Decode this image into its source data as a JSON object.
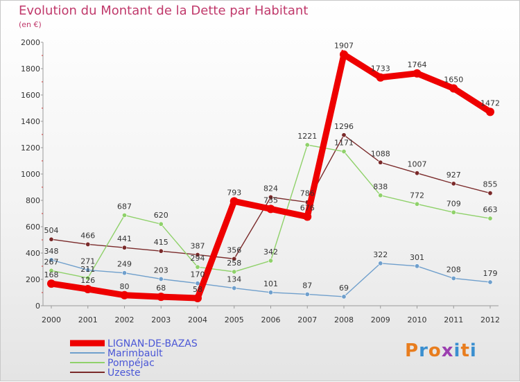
{
  "title": "Evolution du Montant de la Dette par Habitant",
  "unit_label": "(en €)",
  "logo_text": "Proxiti",
  "logo_colors": [
    "#e87d1e",
    "#3a8fd0",
    "#e87d1e",
    "#9c3fb0",
    "#3a8fd0",
    "#e87d1e",
    "#3a8fd0"
  ],
  "chart_data": {
    "type": "line",
    "title": "Evolution du Montant de la Dette par Habitant",
    "ylabel": "(en €)",
    "xlabel": "",
    "x": [
      "2000",
      "2001",
      "2002",
      "2003",
      "2004",
      "2005",
      "2006",
      "2007",
      "2008",
      "2009",
      "2010",
      "2011",
      "2012"
    ],
    "ylim": [
      0,
      2000
    ],
    "yticks": [
      0,
      200,
      400,
      600,
      800,
      1000,
      1200,
      1400,
      1600,
      1800,
      2000
    ],
    "grid": false,
    "legend": "bottom-left",
    "series": [
      {
        "name": "LIGNAN-DE-BAZAS",
        "color": "#ee0000",
        "values": [
          168,
          126,
          80,
          68,
          58,
          793,
          735,
          676,
          1907,
          1733,
          1764,
          1650,
          1472
        ]
      },
      {
        "name": "Marimbault",
        "color": "#6f9fcc",
        "values": [
          348,
          271,
          249,
          203,
          170,
          134,
          101,
          87,
          69,
          322,
          301,
          208,
          179
        ]
      },
      {
        "name": "Pompéjac",
        "color": "#8fd16a",
        "values": [
          267,
          211,
          687,
          620,
          294,
          258,
          342,
          1221,
          1171,
          838,
          772,
          709,
          663
        ]
      },
      {
        "name": "Uzeste",
        "color": "#7a2a2a",
        "values": [
          504,
          466,
          441,
          415,
          387,
          356,
          824,
          786,
          1296,
          1088,
          1007,
          927,
          855
        ]
      }
    ],
    "data_labels": [
      [
        "168",
        "126",
        "80",
        "68",
        "58",
        "793",
        "735",
        "676",
        "1907",
        "1733",
        "1764",
        "1650",
        "1472"
      ],
      [
        "348",
        "271",
        "249",
        "203",
        "170",
        "134",
        "101",
        "87",
        "69",
        "322",
        "301",
        "208",
        "179"
      ],
      [
        "267",
        "211",
        "687",
        "620",
        "294",
        "258",
        "342",
        "1221",
        "1171",
        "838",
        "772",
        "709",
        "663"
      ],
      [
        "504",
        "466",
        "441",
        "415",
        "387",
        "356",
        "824",
        "786",
        "1296",
        "1088",
        "1007",
        "927",
        "855"
      ]
    ]
  }
}
